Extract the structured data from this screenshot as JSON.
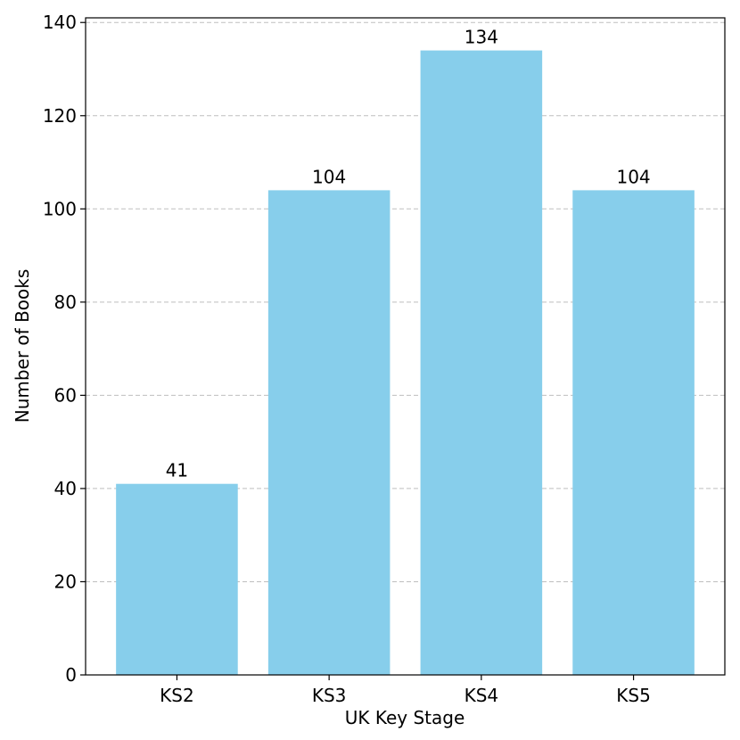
{
  "chart_data": {
    "type": "bar",
    "title": "",
    "xlabel": "UK Key Stage",
    "ylabel": "Number of Books",
    "categories": [
      "KS2",
      "KS3",
      "KS4",
      "KS5"
    ],
    "values": [
      41,
      104,
      134,
      104
    ],
    "value_labels": [
      "41",
      "104",
      "134",
      "104"
    ],
    "ylim": [
      0,
      141
    ],
    "yticks": [
      0,
      20,
      40,
      60,
      80,
      100,
      120,
      140
    ],
    "ytick_labels": [
      "0",
      "20",
      "40",
      "60",
      "80",
      "100",
      "120",
      "140"
    ],
    "grid": {
      "axis": "y",
      "style": "dashed"
    },
    "colors": {
      "bar": "#87ceeb",
      "grid": "#bfbfbf",
      "axis": "#000000"
    }
  }
}
